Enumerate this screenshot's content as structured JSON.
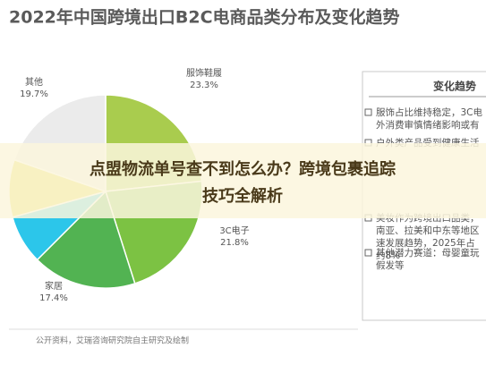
{
  "chart_data": {
    "type": "pie",
    "title": "2022年中国跨境出口B2C电商品类分布及变化趋势",
    "categories": [
      "服饰鞋履",
      "3C电子",
      "家居",
      null,
      null,
      "其他"
    ],
    "values": [
      23.3,
      21.8,
      17.4,
      8.2,
      9.6,
      19.7
    ],
    "value_labels": [
      "23.3%",
      "21.8%",
      "17.4%",
      null,
      null,
      "19.7%"
    ],
    "colors": [
      "#a9cc4e",
      "#7cc243",
      "#52b352",
      "#2cc6ea",
      "#e2d52c",
      "#ebebeb"
    ],
    "source": "公开资料，艾瑞咨询研究院自主研究及绘制"
  },
  "panel": {
    "heading": "变化趋势",
    "items": [
      [
        "服饰占比维持稳定，3C电",
        "外消费审慎情绪影响或有"
      ],
      [
        "户外类产品受到健康生活"
      ],
      [
        "美妆作为跨境出口品类，",
        "南亚、拉美和中东等地区",
        "速发展趋势，2025年占",
        "约8%"
      ],
      [
        "其他潜力赛道：母婴童玩",
        "假发等"
      ]
    ]
  },
  "banner": {
    "lines": [
      "点盟物流单号查不到怎么办？跨境包裹追踪",
      "技巧全解析"
    ]
  }
}
